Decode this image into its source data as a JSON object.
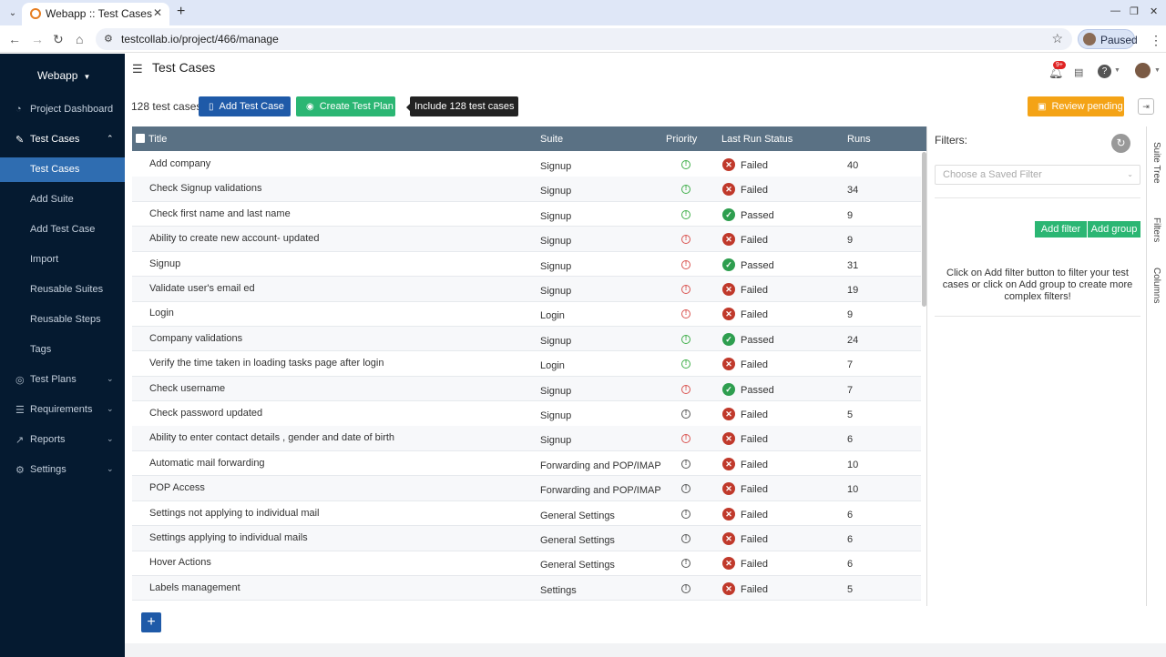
{
  "browser": {
    "tab_title": "Webapp :: Test Cases",
    "url": "testcollab.io/project/466/manage",
    "profile_label": "Paused"
  },
  "sidebar": {
    "brand": "Webapp",
    "items": [
      {
        "label": "Project Dashboard",
        "icon": "gauge-icon"
      },
      {
        "label": "Test Cases",
        "icon": "edit-icon"
      },
      {
        "label": "Test Cases"
      },
      {
        "label": "Add Suite"
      },
      {
        "label": "Add Test Case"
      },
      {
        "label": "Import"
      },
      {
        "label": "Reusable Suites"
      },
      {
        "label": "Reusable Steps"
      },
      {
        "label": "Tags"
      },
      {
        "label": "Test Plans",
        "icon": "check-circle-icon"
      },
      {
        "label": "Requirements",
        "icon": "list-icon"
      },
      {
        "label": "Reports",
        "icon": "chart-icon"
      },
      {
        "label": "Settings",
        "icon": "gear-icon"
      }
    ]
  },
  "header": {
    "title": "Test Cases",
    "notification_badge": "9+"
  },
  "toolbar": {
    "count_label": "128 test cases",
    "add_label": "Add Test Case",
    "plan_label": "Create Test Plan",
    "tooltip": "Include 128 test cases",
    "review_label": "Review pending"
  },
  "table": {
    "columns": [
      "Title",
      "Suite",
      "Priority",
      "Last Run Status",
      "Runs"
    ],
    "rows": [
      {
        "title": "Add company",
        "suite": "Signup",
        "priority": "normal",
        "status": "Failed",
        "runs": "40"
      },
      {
        "title": "Check Signup validations",
        "suite": "Signup",
        "priority": "normal",
        "status": "Failed",
        "runs": "34"
      },
      {
        "title": "Check first name and last name",
        "suite": "Signup",
        "priority": "normal",
        "status": "Passed",
        "runs": "9"
      },
      {
        "title": "Ability to create new account- updated",
        "suite": "Signup",
        "priority": "high",
        "status": "Failed",
        "runs": "9"
      },
      {
        "title": "Signup",
        "suite": "Signup",
        "priority": "high",
        "status": "Passed",
        "runs": "31"
      },
      {
        "title": "Validate user's email ed",
        "suite": "Signup",
        "priority": "high",
        "status": "Failed",
        "runs": "19"
      },
      {
        "title": "Login",
        "suite": "Login",
        "priority": "high",
        "status": "Failed",
        "runs": "9"
      },
      {
        "title": "Company validations",
        "suite": "Signup",
        "priority": "normal",
        "status": "Passed",
        "runs": "24"
      },
      {
        "title": "Verify the time taken in loading tasks page after login",
        "suite": "Login",
        "priority": "normal",
        "status": "Failed",
        "runs": "7"
      },
      {
        "title": "Check username",
        "suite": "Signup",
        "priority": "high",
        "status": "Passed",
        "runs": "7"
      },
      {
        "title": "Check password updated",
        "suite": "Signup",
        "priority": "low",
        "status": "Failed",
        "runs": "5"
      },
      {
        "title": "Ability to enter contact details , gender and date of birth",
        "suite": "Signup",
        "priority": "high",
        "status": "Failed",
        "runs": "6"
      },
      {
        "title": "Automatic mail forwarding",
        "suite": "Forwarding and POP/IMAP",
        "priority": "low",
        "status": "Failed",
        "runs": "10"
      },
      {
        "title": "POP Access",
        "suite": "Forwarding and POP/IMAP",
        "priority": "low",
        "status": "Failed",
        "runs": "10"
      },
      {
        "title": "Settings not applying to individual mail",
        "suite": "General Settings",
        "priority": "low",
        "status": "Failed",
        "runs": "6"
      },
      {
        "title": "Settings applying to individual mails",
        "suite": "General Settings",
        "priority": "low",
        "status": "Failed",
        "runs": "6"
      },
      {
        "title": "Hover Actions",
        "suite": "General Settings",
        "priority": "low",
        "status": "Failed",
        "runs": "6"
      },
      {
        "title": "Labels management",
        "suite": "Settings",
        "priority": "low",
        "status": "Failed",
        "runs": "5"
      }
    ]
  },
  "filters": {
    "title": "Filters:",
    "saved_placeholder": "Choose a Saved Filter",
    "add_filter": "Add filter",
    "add_group": "Add group",
    "help": "Click on Add filter button to filter your test cases or click on Add group to create more complex filters!",
    "side_tabs": [
      "Suite Tree",
      "Filters",
      "Columns"
    ]
  },
  "colors": {
    "sidebar_bg": "#051a30",
    "active_nav": "#2f6db1",
    "primary": "#1f5aa8",
    "success": "#2bb673",
    "warning": "#f4a316",
    "failed": "#c0392b",
    "passed": "#2e9e4f",
    "table_header": "#5a7184"
  }
}
